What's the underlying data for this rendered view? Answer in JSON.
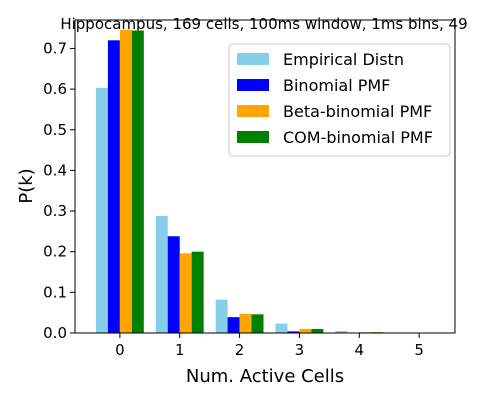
{
  "chart_data": {
    "type": "bar",
    "title": "Hippocampus, 169 cells, 100ms window, 1ms bins, 49",
    "xlabel": "Num. Active Cells",
    "ylabel": "P(k)",
    "categories": [
      "0",
      "1",
      "2",
      "3",
      "4",
      "5"
    ],
    "yticks": [
      "0.0",
      "0.1",
      "0.2",
      "0.3",
      "0.4",
      "0.5",
      "0.6",
      "0.7"
    ],
    "ylim": [
      0,
      0.77
    ],
    "xlim": [
      -0.75,
      5.6
    ],
    "grid": false,
    "legend_position": "top-right",
    "series": [
      {
        "name": "Empirical Distn",
        "color": "#87ceeb",
        "values": [
          0.603,
          0.288,
          0.082,
          0.023,
          0.005,
          0.001
        ]
      },
      {
        "name": "Binomial PMF",
        "color": "#0000ff",
        "values": [
          0.72,
          0.238,
          0.039,
          0.004,
          0.0005,
          0.0
        ]
      },
      {
        "name": "Beta-binomial PMF",
        "color": "#ffa500",
        "values": [
          0.746,
          0.196,
          0.047,
          0.01,
          0.002,
          0.0003
        ]
      },
      {
        "name": "COM-binomial PMF",
        "color": "#008000",
        "values": [
          0.744,
          0.2,
          0.046,
          0.01,
          0.002,
          0.0003
        ]
      }
    ]
  }
}
